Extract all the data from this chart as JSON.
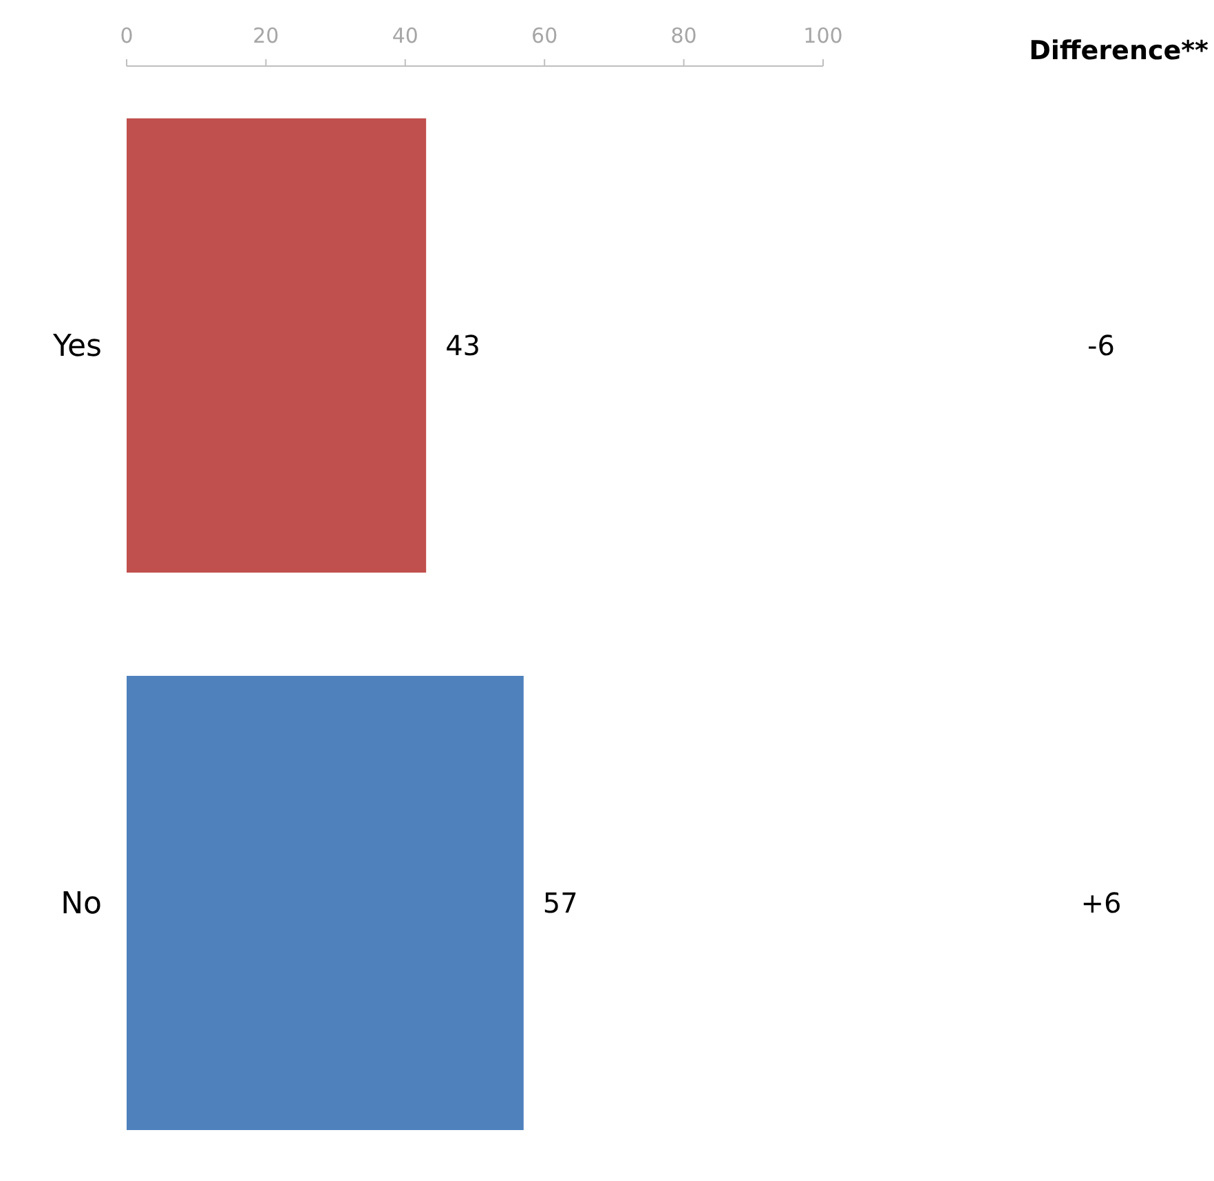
{
  "chart_data": {
    "type": "bar",
    "orientation": "horizontal",
    "categories": [
      "Yes",
      "No"
    ],
    "values": [
      43,
      57
    ],
    "colors": [
      "#c0504d",
      "#4f81bd"
    ],
    "xlim": [
      0,
      100
    ],
    "xticks": [
      0,
      20,
      40,
      60,
      80,
      100
    ],
    "grid": false,
    "legend": false,
    "data_labels": true,
    "annotations": [
      "Difference**",
      "-6",
      "+6"
    ]
  }
}
